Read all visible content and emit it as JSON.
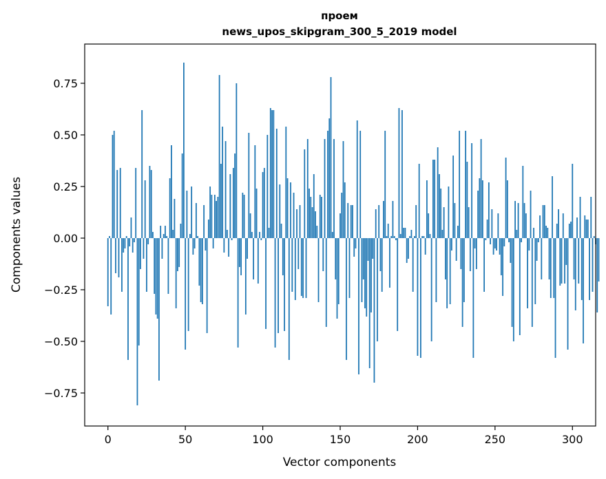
{
  "chart_data": {
    "type": "bar",
    "title": "проем",
    "subtitle": "news_upos_skipgram_300_5_2019 model",
    "xlabel": "Vector components",
    "ylabel": "Components values",
    "xlim": [
      -15,
      315
    ],
    "ylim": [
      -0.91,
      0.94
    ],
    "xticks": [
      0,
      50,
      100,
      150,
      200,
      250,
      300
    ],
    "xtick_labels": [
      "0",
      "50",
      "100",
      "150",
      "200",
      "250",
      "300"
    ],
    "yticks": [
      -0.75,
      -0.5,
      -0.25,
      0.0,
      0.25,
      0.5,
      0.75
    ],
    "ytick_labels": [
      "−0.75",
      "−0.50",
      "−0.25",
      "0.00",
      "0.25",
      "0.50",
      "0.75"
    ],
    "bar_color": "#1f77b4",
    "x_start": 0,
    "values": [
      -0.33,
      0.01,
      -0.37,
      0.5,
      0.52,
      -0.17,
      0.33,
      -0.19,
      0.34,
      -0.26,
      -0.07,
      -0.05,
      0.01,
      -0.59,
      -0.04,
      0.1,
      -0.07,
      -0.02,
      0.34,
      -0.81,
      -0.52,
      -0.15,
      0.62,
      -0.1,
      0.28,
      -0.26,
      -0.03,
      0.35,
      0.33,
      0.03,
      -0.27,
      -0.37,
      -0.39,
      -0.69,
      0.06,
      -0.1,
      0.02,
      0.06,
      0.01,
      -0.27,
      0.29,
      0.45,
      0.04,
      0.19,
      -0.34,
      -0.16,
      -0.14,
      0.07,
      0.41,
      0.85,
      -0.54,
      0.23,
      -0.45,
      0.02,
      0.25,
      -0.08,
      -0.05,
      0.17,
      0.01,
      -0.23,
      -0.31,
      -0.32,
      0.16,
      -0.06,
      -0.46,
      0.09,
      0.25,
      0.21,
      -0.05,
      0.21,
      0.18,
      0.2,
      0.79,
      0.36,
      0.54,
      -0.07,
      0.47,
      0.04,
      -0.09,
      0.31,
      -0.01,
      0.34,
      0.41,
      0.75,
      -0.53,
      -0.14,
      -0.18,
      0.22,
      0.21,
      -0.37,
      -0.1,
      0.51,
      0.12,
      0.03,
      -0.2,
      0.45,
      0.24,
      -0.22,
      0.03,
      -0.01,
      0.32,
      0.34,
      -0.44,
      0.5,
      0.05,
      0.63,
      0.62,
      0.62,
      -0.53,
      0.53,
      -0.46,
      0.26,
      0.07,
      -0.18,
      -0.45,
      0.54,
      0.29,
      -0.59,
      0.27,
      -0.26,
      0.22,
      -0.3,
      0.14,
      -0.15,
      0.16,
      -0.28,
      -0.29,
      0.43,
      -0.29,
      0.48,
      0.24,
      0.2,
      0.15,
      0.31,
      0.13,
      0.06,
      -0.31,
      0.21,
      0.2,
      -0.16,
      0.48,
      -0.43,
      0.52,
      0.58,
      0.78,
      0.03,
      0.48,
      -0.2,
      -0.39,
      -0.32,
      0.12,
      0.22,
      0.47,
      0.27,
      -0.59,
      0.17,
      -0.29,
      0.16,
      0.16,
      -0.09,
      -0.05,
      0.57,
      -0.66,
      0.52,
      -0.31,
      -0.2,
      -0.34,
      -0.38,
      -0.11,
      -0.63,
      -0.36,
      -0.1,
      -0.7,
      0.14,
      -0.5,
      0.16,
      -0.16,
      -0.26,
      0.18,
      0.52,
      0.01,
      0.07,
      -0.24,
      0.01,
      0.18,
      0.01,
      -0.01,
      -0.45,
      0.63,
      0.02,
      0.62,
      0.05,
      0.05,
      -0.12,
      -0.1,
      0.01,
      0.04,
      -0.26,
      0.01,
      0.16,
      -0.57,
      0.36,
      -0.58,
      0.01,
      0.01,
      -0.08,
      0.28,
      0.12,
      0.02,
      -0.5,
      0.38,
      0.38,
      -0.31,
      0.44,
      0.31,
      0.24,
      0.04,
      0.15,
      -0.2,
      -0.34,
      0.25,
      -0.32,
      -0.06,
      0.4,
      0.17,
      -0.11,
      0.06,
      0.52,
      -0.15,
      -0.43,
      -0.31,
      0.52,
      0.37,
      0.15,
      -0.16,
      0.46,
      -0.58,
      -0.05,
      -0.15,
      0.23,
      0.29,
      0.48,
      0.28,
      -0.26,
      -0.01,
      0.09,
      0.27,
      -0.03,
      0.14,
      -0.08,
      -0.05,
      -0.06,
      0.12,
      -0.08,
      -0.18,
      -0.28,
      -0.04,
      0.39,
      0.28,
      -0.02,
      -0.12,
      -0.43,
      -0.5,
      0.18,
      0.04,
      0.17,
      -0.47,
      -0.02,
      0.35,
      0.17,
      0.12,
      -0.34,
      -0.06,
      0.23,
      -0.43,
      0.05,
      -0.32,
      -0.11,
      -0.02,
      0.11,
      -0.2,
      0.16,
      0.16,
      0.06,
      0.05,
      -0.2,
      -0.29,
      0.3,
      -0.29,
      -0.58,
      0.07,
      0.14,
      -0.23,
      -0.22,
      0.12,
      -0.22,
      -0.13,
      -0.54,
      0.07,
      0.08,
      0.36,
      -0.2,
      -0.35,
      0.1,
      -0.22,
      0.2,
      -0.3,
      -0.51,
      0.11,
      0.09,
      0.09,
      -0.3,
      0.2,
      -0.26,
      0.01,
      -0.03,
      -0.36,
      -0.21
    ]
  }
}
